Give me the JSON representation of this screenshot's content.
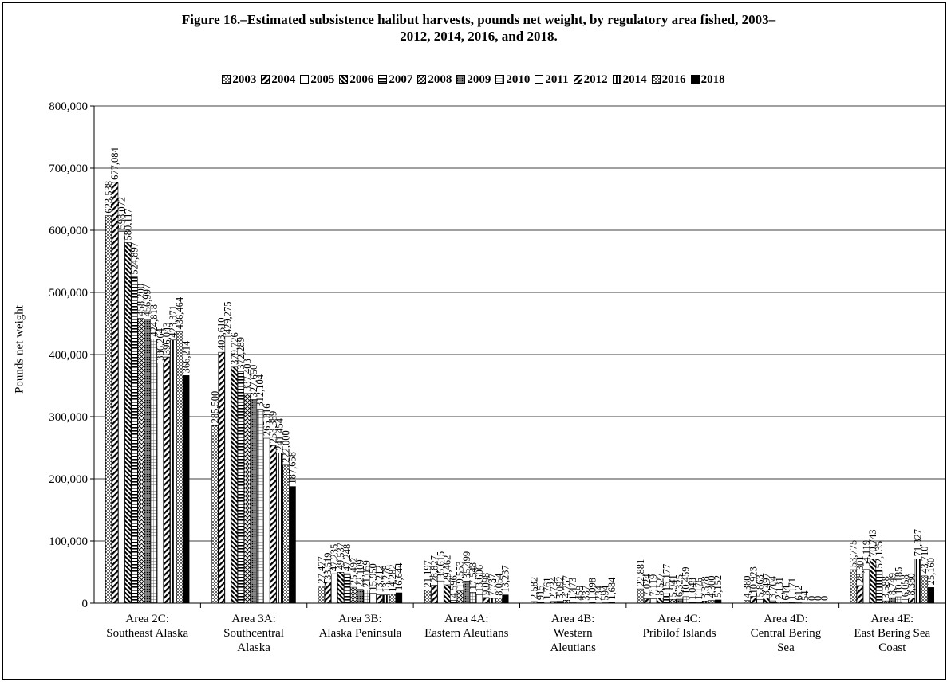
{
  "chart_data": {
    "type": "bar",
    "title": "Figure 16.–Estimated subsistence halibut harvests, pounds net weight, by regulatory area fished, 2003–2012, 2014, 2016, and 2018.",
    "title_lines": [
      "Figure 16.–Estimated subsistence halibut harvests, pounds net weight, by regulatory area fished, 2003–",
      "2012, 2014, 2016, and 2018."
    ],
    "ylabel": "Pounds net weight",
    "xlabel": "",
    "ylim": [
      0,
      800000
    ],
    "y_ticks": [
      "0",
      "100,000",
      "200,000",
      "300,000",
      "400,000",
      "500,000",
      "600,000",
      "700,000",
      "800,000"
    ],
    "grid": true,
    "legend_position": "top",
    "categories": [
      [
        "Area 2C:",
        "Southeast Alaska"
      ],
      [
        "Area 3A:",
        "Southcentral",
        "Alaska"
      ],
      [
        "Area 3B:",
        "Alaska Peninsula"
      ],
      [
        "Area 4A:",
        "Eastern Aleutians"
      ],
      [
        "Area 4B:",
        "Western",
        "Aleutians"
      ],
      [
        "Area 4C:",
        "Pribilof Islands"
      ],
      [
        "Area 4D:",
        "Central Bering",
        "Sea"
      ],
      [
        "Area 4E:",
        "East Bering Sea",
        "Coast"
      ]
    ],
    "series": [
      {
        "name": "2003",
        "pattern": "dots",
        "values": [
          623538,
          285500,
          27477,
          21197,
          2582,
          22881,
          4380,
          53775
        ]
      },
      {
        "name": "2004",
        "pattern": "diag",
        "values": [
          677084,
          403610,
          33519,
          28827,
          915,
          7024,
          10923,
          28301
        ]
      },
      {
        "name": "2005",
        "pattern": "white",
        "values": [
          598072,
          429275,
          47235,
          35615,
          1761,
          7119,
          5863,
          54119
        ]
      },
      {
        "name": "2006",
        "pattern": "diag-dense",
        "values": [
          580117,
          379726,
          49537,
          29462,
          2734,
          8527,
          8497,
          70743
        ]
      },
      {
        "name": "2007",
        "pattern": "hlines",
        "values": [
          524897,
          372289,
          47248,
          4596,
          3092,
          15177,
          3704,
          52135
        ]
      },
      {
        "name": "2008",
        "pattern": "cross",
        "values": [
          458200,
          337403,
          25492,
          19553,
          4757,
          5941,
          2131,
          3588
        ]
      },
      {
        "name": "2009",
        "pattern": "dense-dots",
        "values": [
          456997,
          327650,
          22109,
          35499,
          1473,
          6325,
          644,
          8749
        ]
      },
      {
        "name": "2010",
        "pattern": "grid",
        "values": [
          424818,
          312104,
          21059,
          17548,
          459,
          10459,
          1171,
          10185
        ]
      },
      {
        "name": "2011",
        "pattern": "white",
        "values": [
          386264,
          265316,
          15950,
          13606,
          337,
          1048,
          612,
          6058
        ]
      },
      {
        "name": "2012",
        "pattern": "diag",
        "values": [
          396043,
          253389,
          13212,
          9098,
          1098,
          1176,
          54,
          8380
        ]
      },
      {
        "name": "2014",
        "pattern": "vlines",
        "values": [
          423371,
          241454,
          13278,
          7737,
          234,
          3378,
          0,
          71327
        ]
      },
      {
        "name": "2016",
        "pattern": "checker",
        "values": [
          436464,
          222000,
          14282,
          8054,
          594,
          4300,
          0,
          43710
        ]
      },
      {
        "name": "2018",
        "pattern": "solid",
        "values": [
          366214,
          187658,
          16644,
          13237,
          1684,
          5152,
          0,
          25160
        ]
      }
    ],
    "value_labels": [
      [
        "623,538",
        "677,084",
        "598,072",
        "580,117",
        "524,897",
        "458,200",
        "456,997",
        "424,818",
        "386,264",
        "396,043",
        "423,371",
        "436,464",
        "366,214"
      ],
      [
        "285,500",
        "403,610",
        "429,275",
        "379,726",
        "372,289",
        "337,403",
        "327,650",
        "312,104",
        "265,316",
        "253,389",
        "241,454",
        "222,000",
        "187,658"
      ],
      [
        "27,477",
        "33,519",
        "47,235",
        "49,537",
        "47,248",
        "25,492",
        "22,109",
        "21,059",
        "15,950",
        "13,212",
        "13,278",
        "14,282",
        "16,644"
      ],
      [
        "21,197",
        "28,827",
        "35,615",
        "29,462",
        "4,596",
        "19,553",
        "35,499",
        "17,548",
        "13,606",
        "9,098",
        "7,737",
        "8,054",
        "13,237"
      ],
      [
        "2,582",
        "915",
        "1,761",
        "2,734",
        "3,092",
        "4,757",
        "1,473",
        "459",
        "337",
        "1,098",
        "234",
        "594",
        "1,684"
      ],
      [
        "22,881",
        "7,024",
        "7,119",
        "8,527",
        "15,177",
        "5,941",
        "6,325",
        "10,459",
        "1,048",
        "1,176",
        "3,378",
        "4,300",
        "5,152"
      ],
      [
        "4,380",
        "10,923",
        "5,863",
        "8,497",
        "3,704",
        "2,131",
        "644",
        "1,171",
        "612",
        "54",
        "0",
        "0",
        "0"
      ],
      [
        "53,775",
        "28,301",
        "54,119",
        "70,743",
        "52,135",
        "3,588",
        "8,749",
        "10,185",
        "6,058",
        "8,380",
        "71,327",
        "43,710",
        "25,160"
      ]
    ]
  }
}
